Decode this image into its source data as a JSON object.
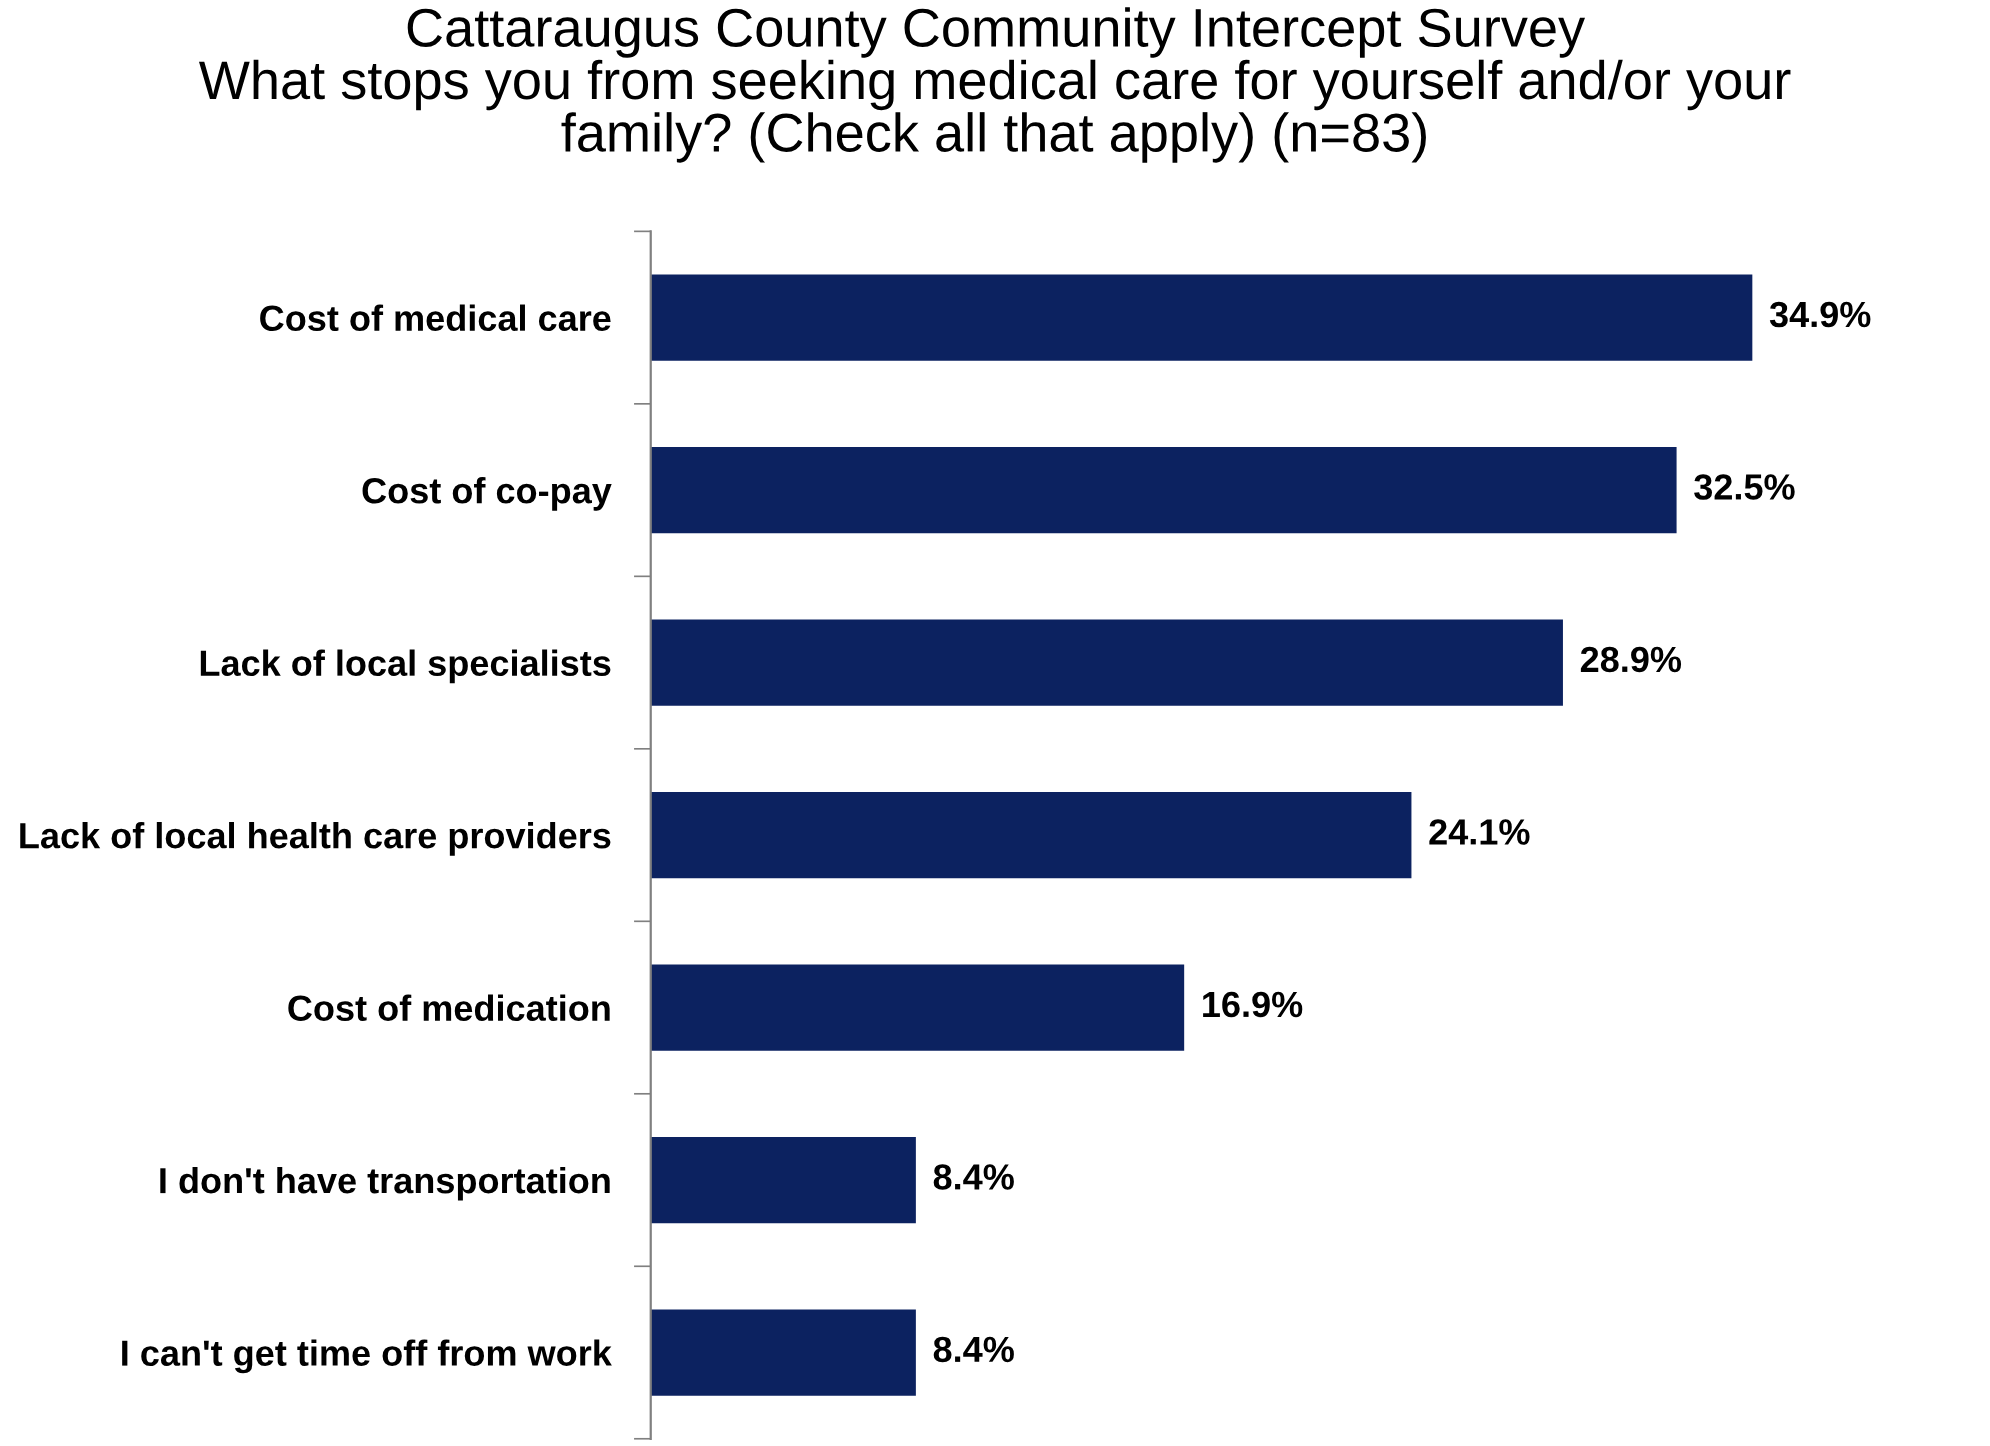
{
  "chart_data": {
    "type": "bar",
    "orientation": "horizontal",
    "title": "Cattaraugus County Community Intercept Survey\nWhat stops you from seeking medical care for yourself and/or your\nfamily? (Check all that apply) (n=83)",
    "categories": [
      "Cost of medical care",
      "Cost of co-pay",
      "Lack of local specialists",
      "Lack of local health care providers",
      "Cost of medication",
      "I don't have transportation",
      "I can't get time off from work"
    ],
    "values": [
      34.9,
      32.5,
      28.9,
      24.1,
      16.9,
      8.4,
      8.4
    ],
    "value_labels": [
      "34.9%",
      "32.5%",
      "28.9%",
      "24.1%",
      "16.9%",
      "8.4%",
      "8.4%"
    ],
    "color": "#0c2260",
    "tick_labels": "y",
    "grid": false,
    "legend": false
  }
}
